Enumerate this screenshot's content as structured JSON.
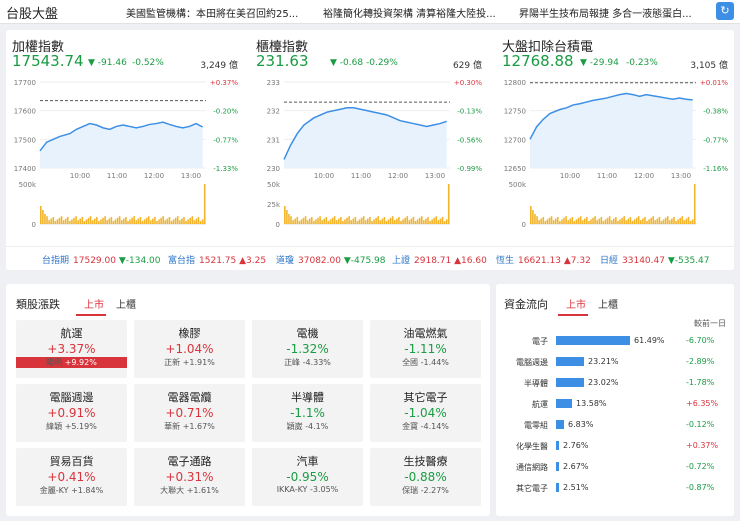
{
  "header": {
    "title": "台股大盤",
    "ticker": [
      "美國監管機構：本田將在美召回約25...",
      "裕隆簡化轉投資架構 清算裕隆大陸投...",
      "昇陽半生技布局報捷 多合一液態蛋白..."
    ]
  },
  "indices": [
    {
      "name": "加權指數",
      "price": "17543.74",
      "change": "▼ -91.46",
      "change_pct": "-0.52%",
      "volume": "3,249 億",
      "y_labels": [
        "17700",
        "17600",
        "17500",
        "17400"
      ],
      "pct_labels": [
        "+0.37%",
        "-0.20%",
        "-0.77%",
        "-1.33%"
      ],
      "vol_labels": [
        "500k",
        "0"
      ],
      "times": [
        "10:00",
        "11:00",
        "12:00",
        "13:00"
      ],
      "chart_data": {
        "type": "line",
        "ylim": [
          17400,
          17700
        ],
        "ref": 17635,
        "x": [
          0,
          0.04,
          0.08,
          0.12,
          0.18,
          0.22,
          0.26,
          0.3,
          0.34,
          0.38,
          0.42,
          0.46,
          0.5,
          0.54,
          0.58,
          0.62,
          0.66,
          0.7,
          0.74,
          0.78,
          0.82,
          0.86,
          0.9,
          0.94,
          0.98
        ],
        "y": [
          17460,
          17490,
          17500,
          17510,
          17520,
          17535,
          17545,
          17555,
          17550,
          17540,
          17535,
          17545,
          17550,
          17545,
          17540,
          17545,
          17552,
          17555,
          17560,
          17552,
          17545,
          17540,
          17545,
          17555,
          17543
        ]
      }
    },
    {
      "name": "櫃檯指數",
      "price": "231.63",
      "change": "▼ -0.68",
      "change_pct": "-0.29%",
      "volume": "629 億",
      "y_labels": [
        "233",
        "232",
        "231",
        "230"
      ],
      "pct_labels": [
        "+0.30%",
        "-0.13%",
        "-0.56%",
        "-0.99%"
      ],
      "vol_labels": [
        "50k",
        "25k",
        "0"
      ],
      "times": [
        "10:00",
        "11:00",
        "12:00",
        "13:00"
      ],
      "chart_data": {
        "type": "line",
        "ylim": [
          230,
          233
        ],
        "ref": 232.3,
        "x": [
          0,
          0.04,
          0.08,
          0.12,
          0.18,
          0.22,
          0.26,
          0.3,
          0.34,
          0.38,
          0.42,
          0.46,
          0.5,
          0.54,
          0.58,
          0.62,
          0.66,
          0.7,
          0.74,
          0.78,
          0.82,
          0.86,
          0.9,
          0.94,
          0.98
        ],
        "y": [
          230.3,
          230.8,
          231.2,
          231.5,
          231.75,
          231.85,
          231.95,
          232.0,
          232.05,
          232.1,
          232.1,
          232.05,
          232.0,
          231.95,
          231.9,
          231.85,
          231.75,
          231.65,
          231.6,
          231.55,
          231.5,
          231.45,
          231.5,
          231.55,
          231.63
        ]
      }
    },
    {
      "name": "大盤扣除台積電",
      "price": "12768.88",
      "change": "▼ -29.94",
      "change_pct": "-0.23%",
      "volume": "3,105 億",
      "y_labels": [
        "12800",
        "12750",
        "12700",
        "12650"
      ],
      "pct_labels": [
        "+0.01%",
        "-0.38%",
        "-0.77%",
        "-1.16%"
      ],
      "vol_labels": [
        "500k",
        "0"
      ],
      "times": [
        "10:00",
        "11:00",
        "12:00",
        "13:00"
      ],
      "chart_data": {
        "type": "line",
        "ylim": [
          12650,
          12800
        ],
        "ref": 12798.8,
        "x": [
          0,
          0.04,
          0.08,
          0.12,
          0.18,
          0.22,
          0.26,
          0.3,
          0.34,
          0.38,
          0.42,
          0.46,
          0.5,
          0.54,
          0.58,
          0.62,
          0.66,
          0.7,
          0.74,
          0.78,
          0.82,
          0.86,
          0.9,
          0.94,
          0.98
        ],
        "y": [
          12700,
          12722,
          12735,
          12745,
          12752,
          12755,
          12760,
          12762,
          12765,
          12768,
          12770,
          12772,
          12775,
          12778,
          12780,
          12778,
          12775,
          12778,
          12776,
          12774,
          12772,
          12770,
          12772,
          12770,
          12768.88
        ]
      }
    }
  ],
  "foreign": [
    {
      "name": "台指期",
      "price": "17529.00",
      "change": "▼-134.00",
      "dir": "down"
    },
    {
      "name": "富台指",
      "price": "1521.75",
      "change": "▲3.25",
      "dir": "up"
    },
    {
      "name": "道瓊",
      "price": "37082.00",
      "change": "▼-475.98",
      "dir": "down"
    },
    {
      "name": "上證",
      "price": "2918.71",
      "change": "▲16.60",
      "dir": "up"
    },
    {
      "name": "恆生",
      "price": "16621.13",
      "change": "▲7.32",
      "dir": "up"
    },
    {
      "name": "日經",
      "price": "33140.47",
      "change": "▼-535.47",
      "dir": "down"
    }
  ],
  "sectors": {
    "title": "類股漲跌",
    "tabs": [
      "上市",
      "上櫃"
    ],
    "cards": [
      {
        "name": "航運",
        "pct": "+3.37%",
        "dir": "up",
        "stock": "陽明",
        "stock_pct": "+9.92%",
        "highlight": true
      },
      {
        "name": "橡膠",
        "pct": "+1.04%",
        "dir": "up",
        "stock": "正新",
        "stock_pct": "+1.91%",
        "highlight": false
      },
      {
        "name": "電機",
        "pct": "-1.32%",
        "dir": "down",
        "stock": "正峰",
        "stock_pct": "-4.33%",
        "highlight": false
      },
      {
        "name": "油電燃氣",
        "pct": "-1.11%",
        "dir": "down",
        "stock": "全國",
        "stock_pct": "-1.44%",
        "highlight": false
      },
      {
        "name": "電腦週邊",
        "pct": "+0.91%",
        "dir": "up",
        "stock": "緯穎",
        "stock_pct": "+5.19%",
        "highlight": false
      },
      {
        "name": "電器電纜",
        "pct": "+0.71%",
        "dir": "up",
        "stock": "華新",
        "stock_pct": "+1.67%",
        "highlight": false
      },
      {
        "name": "半導體",
        "pct": "-1.1%",
        "dir": "down",
        "stock": "穎崴",
        "stock_pct": "-4.1%",
        "highlight": false
      },
      {
        "name": "其它電子",
        "pct": "-1.04%",
        "dir": "down",
        "stock": "金寶",
        "stock_pct": "-4.14%",
        "highlight": false
      },
      {
        "name": "貿易百貨",
        "pct": "+0.41%",
        "dir": "up",
        "stock": "金麗-KY",
        "stock_pct": "+1.84%",
        "highlight": false
      },
      {
        "name": "電子通路",
        "pct": "+0.31%",
        "dir": "up",
        "stock": "大聯大",
        "stock_pct": "+1.61%",
        "highlight": false
      },
      {
        "name": "汽車",
        "pct": "-0.95%",
        "dir": "down",
        "stock": "IKKA-KY",
        "stock_pct": "-3.05%",
        "highlight": false
      },
      {
        "name": "生技醫療",
        "pct": "-0.88%",
        "dir": "down",
        "stock": "保瑞",
        "stock_pct": "-2.27%",
        "highlight": false
      }
    ]
  },
  "flow": {
    "title": "資金流向",
    "tabs": [
      "上市",
      "上櫃"
    ],
    "header": "較前一日",
    "items": [
      {
        "name": "電子",
        "share": 61.49,
        "pct": "61.49%",
        "day": "-6.70%",
        "dir": "down"
      },
      {
        "name": "電腦週邊",
        "share": 23.21,
        "pct": "23.21%",
        "day": "-2.89%",
        "dir": "down"
      },
      {
        "name": "半導體",
        "share": 23.02,
        "pct": "23.02%",
        "day": "-1.78%",
        "dir": "down"
      },
      {
        "name": "航運",
        "share": 13.58,
        "pct": "13.58%",
        "day": "+6.35%",
        "dir": "up"
      },
      {
        "name": "電零組",
        "share": 6.83,
        "pct": "6.83%",
        "day": "-0.12%",
        "dir": "down"
      },
      {
        "name": "化學生醫",
        "share": 2.76,
        "pct": "2.76%",
        "day": "+0.37%",
        "dir": "up"
      },
      {
        "name": "通信網路",
        "share": 2.67,
        "pct": "2.67%",
        "day": "-0.72%",
        "dir": "down"
      },
      {
        "name": "其它電子",
        "share": 2.51,
        "pct": "2.51%",
        "day": "-0.87%",
        "dir": "down"
      }
    ]
  },
  "colors": {
    "up": "#d8343c",
    "down": "#1a9c43",
    "accent": "#3d8fe6",
    "volume": "#f2b42c"
  },
  "icons": {
    "refresh": "refresh-icon"
  }
}
